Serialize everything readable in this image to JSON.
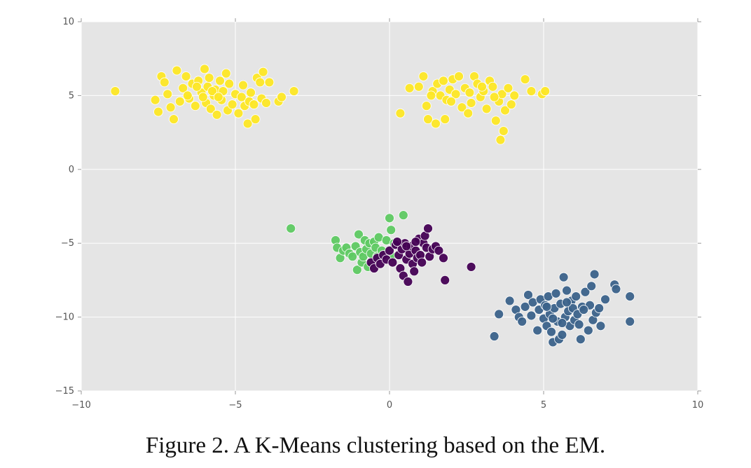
{
  "caption": "Figure 2. A K-Means clustering based on the EM.",
  "chart_data": {
    "type": "scatter",
    "title": "",
    "xlabel": "",
    "ylabel": "",
    "xlim": [
      -10,
      10
    ],
    "ylim": [
      -15,
      10
    ],
    "xticks": [
      "−10",
      "−5",
      "0",
      "5",
      "10"
    ],
    "yticks": [
      "10",
      "5",
      "0",
      "−5",
      "−10",
      "−15"
    ],
    "grid": true,
    "background": "#e5e5e5",
    "series": [
      {
        "color": "#fde725",
        "points": [
          [
            -8.9,
            5.3
          ],
          [
            -7.6,
            4.7
          ],
          [
            -7.5,
            3.9
          ],
          [
            -7.4,
            6.3
          ],
          [
            -7.3,
            5.9
          ],
          [
            -7.2,
            5.1
          ],
          [
            -7.1,
            4.2
          ],
          [
            -7.0,
            3.4
          ],
          [
            -6.9,
            6.7
          ],
          [
            -6.8,
            4.6
          ],
          [
            -6.7,
            5.5
          ],
          [
            -6.6,
            6.3
          ],
          [
            -6.5,
            4.8
          ],
          [
            -6.4,
            5.8
          ],
          [
            -6.3,
            4.3
          ],
          [
            -6.2,
            6.0
          ],
          [
            -6.1,
            5.2
          ],
          [
            -6.0,
            6.8
          ],
          [
            -5.95,
            4.5
          ],
          [
            -5.9,
            5.6
          ],
          [
            -5.85,
            6.2
          ],
          [
            -5.8,
            4.1
          ],
          [
            -5.7,
            5.0
          ],
          [
            -5.65,
            5.4
          ],
          [
            -5.6,
            3.7
          ],
          [
            -5.5,
            6.0
          ],
          [
            -5.45,
            4.7
          ],
          [
            -5.4,
            5.3
          ],
          [
            -5.3,
            6.5
          ],
          [
            -5.25,
            4.0
          ],
          [
            -5.2,
            5.8
          ],
          [
            -5.1,
            4.4
          ],
          [
            -5.0,
            5.1
          ],
          [
            -4.9,
            3.8
          ],
          [
            -4.8,
            4.9
          ],
          [
            -4.75,
            5.7
          ],
          [
            -4.7,
            4.3
          ],
          [
            -4.6,
            3.1
          ],
          [
            -4.55,
            4.6
          ],
          [
            -4.5,
            5.2
          ],
          [
            -4.4,
            4.4
          ],
          [
            -4.35,
            3.4
          ],
          [
            -4.3,
            6.2
          ],
          [
            -4.2,
            5.9
          ],
          [
            -4.15,
            4.8
          ],
          [
            -4.1,
            6.6
          ],
          [
            -4.0,
            4.5
          ],
          [
            -3.9,
            5.9
          ],
          [
            -3.6,
            4.6
          ],
          [
            -3.5,
            4.9
          ],
          [
            -3.1,
            5.3
          ],
          [
            -6.55,
            5.0
          ],
          [
            -6.05,
            4.9
          ],
          [
            -5.75,
            5.3
          ],
          [
            -6.25,
            5.6
          ],
          [
            -5.55,
            4.9
          ],
          [
            0.35,
            3.8
          ],
          [
            0.65,
            5.5
          ],
          [
            0.95,
            5.6
          ],
          [
            1.1,
            6.3
          ],
          [
            1.2,
            4.3
          ],
          [
            1.25,
            3.4
          ],
          [
            1.4,
            5.3
          ],
          [
            1.5,
            3.1
          ],
          [
            1.55,
            5.8
          ],
          [
            1.65,
            5.0
          ],
          [
            1.75,
            6.0
          ],
          [
            1.8,
            3.4
          ],
          [
            1.85,
            4.7
          ],
          [
            1.95,
            5.4
          ],
          [
            2.05,
            6.1
          ],
          [
            2.15,
            5.1
          ],
          [
            2.25,
            6.3
          ],
          [
            2.35,
            4.2
          ],
          [
            2.45,
            5.5
          ],
          [
            2.55,
            3.8
          ],
          [
            2.65,
            4.5
          ],
          [
            2.75,
            6.3
          ],
          [
            2.85,
            5.8
          ],
          [
            2.95,
            4.9
          ],
          [
            3.05,
            5.3
          ],
          [
            3.15,
            4.1
          ],
          [
            3.25,
            6.0
          ],
          [
            3.35,
            5.6
          ],
          [
            3.45,
            3.3
          ],
          [
            3.55,
            4.6
          ],
          [
            3.65,
            5.1
          ],
          [
            3.7,
            2.6
          ],
          [
            3.6,
            2.0
          ],
          [
            3.75,
            4.0
          ],
          [
            3.85,
            5.5
          ],
          [
            3.95,
            4.4
          ],
          [
            4.05,
            5.0
          ],
          [
            4.4,
            6.1
          ],
          [
            4.6,
            5.3
          ],
          [
            4.95,
            5.1
          ],
          [
            5.05,
            5.3
          ],
          [
            2.0,
            4.6
          ],
          [
            2.6,
            5.2
          ],
          [
            3.0,
            5.6
          ],
          [
            1.35,
            5.0
          ],
          [
            3.4,
            4.9
          ]
        ]
      },
      {
        "color": "#5ec962",
        "points": [
          [
            -3.2,
            -4.0
          ],
          [
            -1.75,
            -4.8
          ],
          [
            -1.7,
            -5.3
          ],
          [
            -1.6,
            -6.0
          ],
          [
            -1.5,
            -5.5
          ],
          [
            -1.4,
            -5.3
          ],
          [
            -1.3,
            -5.7
          ],
          [
            -1.2,
            -5.9
          ],
          [
            -1.1,
            -5.2
          ],
          [
            -1.05,
            -6.8
          ],
          [
            -1.0,
            -4.4
          ],
          [
            -0.95,
            -5.6
          ],
          [
            -0.9,
            -6.3
          ],
          [
            -0.85,
            -5.9
          ],
          [
            -0.8,
            -4.8
          ],
          [
            -0.75,
            -5.4
          ],
          [
            -0.7,
            -6.6
          ],
          [
            -0.65,
            -5.0
          ],
          [
            -0.6,
            -5.7
          ],
          [
            -0.5,
            -4.9
          ],
          [
            -0.45,
            -5.3
          ],
          [
            -0.4,
            -5.9
          ],
          [
            -0.35,
            -4.6
          ],
          [
            -0.25,
            -5.5
          ],
          [
            -0.1,
            -4.8
          ],
          [
            0.0,
            -3.3
          ],
          [
            0.05,
            -4.1
          ],
          [
            0.15,
            -5.0
          ],
          [
            0.45,
            -3.1
          ],
          [
            0.1,
            -5.9
          ]
        ]
      },
      {
        "color": "#440154",
        "points": [
          [
            -0.6,
            -6.3
          ],
          [
            -0.5,
            -6.7
          ],
          [
            -0.4,
            -6.0
          ],
          [
            -0.3,
            -6.4
          ],
          [
            -0.2,
            -5.8
          ],
          [
            -0.1,
            -6.1
          ],
          [
            0.0,
            -5.5
          ],
          [
            0.1,
            -6.3
          ],
          [
            0.2,
            -5.1
          ],
          [
            0.3,
            -5.8
          ],
          [
            0.35,
            -6.7
          ],
          [
            0.4,
            -5.4
          ],
          [
            0.45,
            -7.2
          ],
          [
            0.5,
            -5.0
          ],
          [
            0.55,
            -6.1
          ],
          [
            0.6,
            -7.6
          ],
          [
            0.65,
            -5.7
          ],
          [
            0.7,
            -5.2
          ],
          [
            0.75,
            -6.4
          ],
          [
            0.8,
            -6.9
          ],
          [
            0.85,
            -5.5
          ],
          [
            0.9,
            -6.0
          ],
          [
            0.95,
            -4.7
          ],
          [
            1.0,
            -5.8
          ],
          [
            1.05,
            -6.3
          ],
          [
            1.1,
            -5.0
          ],
          [
            1.15,
            -4.5
          ],
          [
            1.2,
            -5.3
          ],
          [
            1.25,
            -4.0
          ],
          [
            1.3,
            -5.9
          ],
          [
            1.4,
            -5.4
          ],
          [
            1.5,
            -5.2
          ],
          [
            1.6,
            -5.5
          ],
          [
            1.75,
            -6.0
          ],
          [
            1.8,
            -7.5
          ],
          [
            2.65,
            -6.6
          ],
          [
            0.25,
            -4.9
          ],
          [
            0.55,
            -5.2
          ],
          [
            0.85,
            -4.9
          ]
        ]
      },
      {
        "color": "#3b628a",
        "points": [
          [
            3.4,
            -11.3
          ],
          [
            3.55,
            -9.8
          ],
          [
            3.9,
            -8.9
          ],
          [
            4.1,
            -9.5
          ],
          [
            4.2,
            -10.0
          ],
          [
            4.3,
            -10.3
          ],
          [
            4.4,
            -9.3
          ],
          [
            4.5,
            -8.5
          ],
          [
            4.6,
            -9.9
          ],
          [
            4.65,
            -9.0
          ],
          [
            4.8,
            -10.9
          ],
          [
            4.85,
            -9.5
          ],
          [
            4.9,
            -8.8
          ],
          [
            5.0,
            -10.1
          ],
          [
            5.05,
            -9.2
          ],
          [
            5.1,
            -10.6
          ],
          [
            5.15,
            -8.6
          ],
          [
            5.2,
            -9.8
          ],
          [
            5.25,
            -11.0
          ],
          [
            5.3,
            -11.7
          ],
          [
            5.35,
            -9.4
          ],
          [
            5.4,
            -8.4
          ],
          [
            5.45,
            -10.3
          ],
          [
            5.5,
            -11.5
          ],
          [
            5.55,
            -9.1
          ],
          [
            5.6,
            -11.2
          ],
          [
            5.65,
            -7.3
          ],
          [
            5.7,
            -10.0
          ],
          [
            5.75,
            -8.2
          ],
          [
            5.8,
            -9.6
          ],
          [
            5.85,
            -10.6
          ],
          [
            5.9,
            -8.9
          ],
          [
            5.95,
            -9.4
          ],
          [
            6.0,
            -10.2
          ],
          [
            6.05,
            -8.6
          ],
          [
            6.1,
            -9.8
          ],
          [
            6.15,
            -10.5
          ],
          [
            6.2,
            -11.5
          ],
          [
            6.25,
            -9.3
          ],
          [
            6.35,
            -8.3
          ],
          [
            6.45,
            -10.9
          ],
          [
            6.5,
            -9.2
          ],
          [
            6.55,
            -7.9
          ],
          [
            6.6,
            -10.2
          ],
          [
            6.65,
            -7.1
          ],
          [
            6.7,
            -9.7
          ],
          [
            6.8,
            -9.4
          ],
          [
            6.85,
            -10.6
          ],
          [
            7.0,
            -8.8
          ],
          [
            7.3,
            -7.8
          ],
          [
            7.35,
            -8.1
          ],
          [
            7.8,
            -8.6
          ],
          [
            7.8,
            -10.3
          ],
          [
            5.3,
            -10.1
          ],
          [
            5.75,
            -9.0
          ],
          [
            6.3,
            -9.5
          ],
          [
            5.1,
            -9.3
          ],
          [
            5.6,
            -10.4
          ]
        ]
      }
    ]
  }
}
